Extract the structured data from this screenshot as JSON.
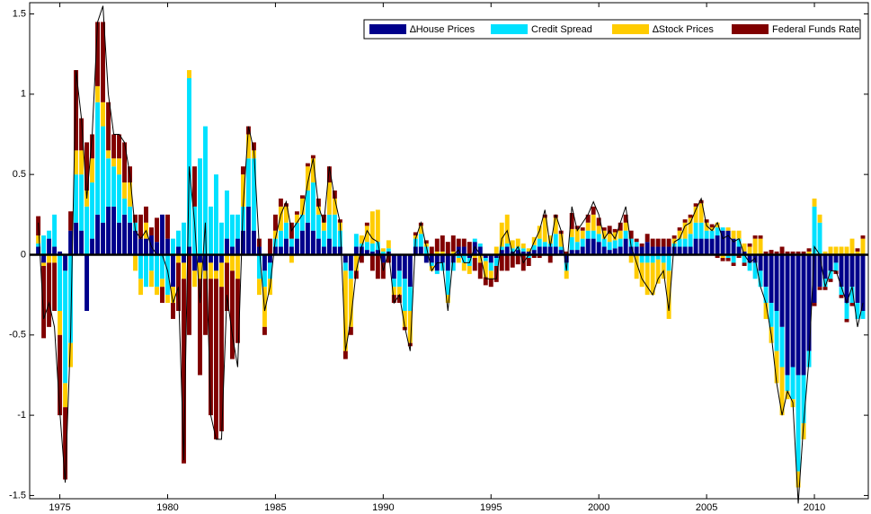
{
  "chart_data": {
    "type": "stacked_bar",
    "legend": "upper right",
    "xlim": [
      1973.6,
      2012.5
    ],
    "ylim": [
      -1.52,
      1.57
    ],
    "xticks": [
      1975,
      1980,
      1985,
      1990,
      1995,
      2000,
      2005,
      2010
    ],
    "yticks": [
      -1.5,
      -1,
      -0.5,
      0,
      0.5,
      1,
      1.5
    ],
    "x": [
      1974,
      1974.25,
      1974.5,
      1974.75,
      1975,
      1975.25,
      1975.5,
      1975.75,
      1976,
      1976.25,
      1976.5,
      1976.75,
      1977,
      1977.25,
      1977.5,
      1977.75,
      1978,
      1978.25,
      1978.5,
      1978.75,
      1979,
      1979.25,
      1979.5,
      1979.75,
      1980,
      1980.25,
      1980.5,
      1980.75,
      1981,
      1981.25,
      1981.5,
      1981.75,
      1982,
      1982.25,
      1982.5,
      1982.75,
      1983,
      1983.25,
      1983.5,
      1983.75,
      1984,
      1984.25,
      1984.5,
      1984.75,
      1985,
      1985.25,
      1985.5,
      1985.75,
      1986,
      1986.25,
      1986.5,
      1986.75,
      1987,
      1987.25,
      1987.5,
      1987.75,
      1988,
      1988.25,
      1988.5,
      1988.75,
      1989,
      1989.25,
      1989.5,
      1989.75,
      1990,
      1990.25,
      1990.5,
      1990.75,
      1991,
      1991.25,
      1991.5,
      1991.75,
      1992,
      1992.25,
      1992.5,
      1992.75,
      1993,
      1993.25,
      1993.5,
      1993.75,
      1994,
      1994.25,
      1994.5,
      1994.75,
      1995,
      1995.25,
      1995.5,
      1995.75,
      1996,
      1996.25,
      1996.5,
      1996.75,
      1997,
      1997.25,
      1997.5,
      1997.75,
      1998,
      1998.25,
      1998.5,
      1998.75,
      1999,
      1999.25,
      1999.5,
      1999.75,
      2000,
      2000.25,
      2000.5,
      2000.75,
      2001,
      2001.25,
      2001.5,
      2001.75,
      2002,
      2002.25,
      2002.5,
      2002.75,
      2003,
      2003.25,
      2003.5,
      2003.75,
      2004,
      2004.25,
      2004.5,
      2004.75,
      2005,
      2005.25,
      2005.5,
      2005.75,
      2006,
      2006.25,
      2006.5,
      2006.75,
      2007,
      2007.25,
      2007.5,
      2007.75,
      2008,
      2008.25,
      2008.5,
      2008.75,
      2009,
      2009.25,
      2009.5,
      2009.75,
      2010,
      2010.25,
      2010.5,
      2010.75,
      2011,
      2011.25,
      2011.5,
      2011.75,
      2012,
      2012.25
    ],
    "series": [
      {
        "name": "∆House Prices",
        "color": "#00008b",
        "values": [
          0.05,
          -0.05,
          0.1,
          0.05,
          0.02,
          -0.1,
          0.15,
          0.2,
          0.15,
          -0.35,
          0.1,
          0.25,
          0.2,
          0.3,
          0.3,
          0.2,
          0.25,
          0.2,
          0.15,
          0.1,
          0.1,
          0.12,
          0.08,
          0.25,
          0.1,
          -0.2,
          0.05,
          -0.05,
          0.05,
          -0.1,
          -0.05,
          -0.1,
          -0.05,
          -0.1,
          -0.05,
          0.1,
          0.05,
          0.1,
          0.15,
          0.3,
          0.15,
          0.05,
          -0.1,
          -0.05,
          0.05,
          0.05,
          0.1,
          0.05,
          0.1,
          0.15,
          0.2,
          0.15,
          0.1,
          0.05,
          0.1,
          0.05,
          0.05,
          -0.05,
          -0.1,
          0.05,
          0.05,
          0.03,
          0.02,
          0.03,
          -0.05,
          0.02,
          -0.15,
          -0.1,
          -0.15,
          -0.2,
          0.05,
          0.05,
          -0.05,
          -0.05,
          -0.1,
          -0.05,
          -0.1,
          -0.05,
          0.05,
          0.05,
          -0.02,
          0.08,
          0.05,
          -0.02,
          -0.05,
          -0.02,
          0.03,
          0.05,
          0.02,
          0.03,
          0.02,
          0.02,
          0.03,
          0.05,
          0.05,
          0.05,
          0.05,
          0.03,
          -0.05,
          0.03,
          0.03,
          0.05,
          0.1,
          0.1,
          0.08,
          0.05,
          0.03,
          0.04,
          0.05,
          0.1,
          0.05,
          0.05,
          0.05,
          0.08,
          0.05,
          0.05,
          0.05,
          0.05,
          0.05,
          0.05,
          0.05,
          0.05,
          0.1,
          0.1,
          0.1,
          0.1,
          0.12,
          0.15,
          0.15,
          0.1,
          0.05,
          0.02,
          -0.05,
          -0.05,
          -0.1,
          -0.2,
          -0.3,
          -0.35,
          -0.45,
          -0.75,
          -0.7,
          -0.75,
          -0.75,
          -0.6,
          -0.3,
          -0.2,
          -0.15,
          -0.1,
          -0.05,
          -0.2,
          -0.3,
          -0.2,
          -0.3,
          -0.35
        ]
      },
      {
        "name": "Credit Spread",
        "color": "#00e1ff",
        "values": [
          0.02,
          0.12,
          0.05,
          0.2,
          -0.35,
          -0.7,
          -0.55,
          0.3,
          0.35,
          0.3,
          0.35,
          0.7,
          0.6,
          0.3,
          0.25,
          0.3,
          0.1,
          0.1,
          0.05,
          -0.15,
          -0.2,
          -0.1,
          -0.2,
          -0.15,
          -0.25,
          0.1,
          0.1,
          0.2,
          1.05,
          0.3,
          0.6,
          0.8,
          0.3,
          0.5,
          0.2,
          0.3,
          0.2,
          0.15,
          0.15,
          0.3,
          0.45,
          -0.15,
          -0.1,
          -0.1,
          0.05,
          0.1,
          0.1,
          0.05,
          0.1,
          0.1,
          0.2,
          0.3,
          0.15,
          0.1,
          0.15,
          0.2,
          0.1,
          -0.05,
          -0.05,
          0.08,
          0.02,
          0.05,
          0.05,
          0.05,
          0.02,
          0.02,
          -0.05,
          -0.1,
          -0.2,
          -0.15,
          0.05,
          0.08,
          0.05,
          -0.02,
          -0.02,
          -0.05,
          -0.15,
          -0.05,
          -0.02,
          -0.05,
          -0.05,
          0.02,
          0.02,
          -0.02,
          -0.05,
          -0.05,
          0.02,
          0.02,
          0.02,
          0.02,
          0.02,
          -0.02,
          0.03,
          0.05,
          0.03,
          0.02,
          0.08,
          0.02,
          -0.05,
          0.08,
          0.05,
          0.05,
          0.05,
          0.05,
          0.05,
          0.05,
          0.05,
          0.05,
          0.05,
          0.05,
          0.05,
          0.03,
          -0.05,
          -0.05,
          -0.05,
          -0.03,
          -0.05,
          -0.1,
          0.02,
          0.05,
          0.05,
          0.08,
          0.1,
          0.1,
          0.05,
          0.05,
          0.05,
          0.02,
          -0.02,
          -0.05,
          0.05,
          -0.05,
          -0.05,
          -0.1,
          -0.1,
          -0.1,
          -0.15,
          -0.25,
          -0.25,
          -0.1,
          -0.2,
          -0.6,
          -0.3,
          -0.1,
          0.3,
          0.2,
          -0.05,
          -0.05,
          -0.05,
          -0.05,
          -0.1,
          -0.1,
          -0.1,
          -0.05
        ]
      },
      {
        "name": "∆Stock Prices",
        "color": "#ffcc00",
        "values": [
          0.05,
          -0.02,
          -0.05,
          -0.05,
          -0.15,
          -0.15,
          -0.15,
          0.15,
          0.15,
          0.1,
          0.15,
          0.1,
          0.15,
          0.05,
          0.05,
          0.1,
          0.1,
          0.15,
          -0.1,
          -0.1,
          0.1,
          -0.1,
          -0.05,
          -0.05,
          -0.05,
          -0.1,
          -0.05,
          -0.1,
          0.05,
          -0.1,
          -0.1,
          -0.05,
          -0.1,
          -0.05,
          -0.15,
          -0.05,
          -0.1,
          -0.15,
          0.2,
          0.15,
          0.05,
          -0.1,
          -0.25,
          -0.1,
          0.05,
          0.15,
          0.1,
          -0.05,
          0.05,
          0.1,
          0.15,
          0.15,
          0.05,
          0.05,
          0.2,
          0.1,
          0.05,
          -0.5,
          -0.3,
          -0.1,
          0.05,
          0.1,
          0.2,
          0.2,
          0.02,
          0.05,
          -0.05,
          -0.05,
          -0.1,
          -0.2,
          0.02,
          0.05,
          0.02,
          -0.03,
          0.02,
          0.02,
          -0.05,
          0.02,
          -0.03,
          -0.05,
          -0.05,
          -0.02,
          -0.05,
          -0.1,
          -0.05,
          0.05,
          0.15,
          0.18,
          0.05,
          0.05,
          0.03,
          0.02,
          0.05,
          0.08,
          0.15,
          0.05,
          0.1,
          0.08,
          -0.05,
          0.05,
          0.08,
          0.05,
          0.05,
          0.1,
          0.05,
          0.05,
          0.05,
          0.05,
          0.05,
          0.05,
          -0.05,
          -0.15,
          -0.15,
          -0.2,
          -0.2,
          -0.15,
          -0.1,
          -0.3,
          0.03,
          0.05,
          0.1,
          0.1,
          0.1,
          0.12,
          0.05,
          0.02,
          0.03,
          -0.02,
          0.02,
          0.05,
          0.05,
          0.05,
          0.05,
          0.1,
          0.1,
          -0.1,
          -0.1,
          -0.2,
          -0.3,
          -0.05,
          -0.05,
          -0.1,
          -0.1,
          0.02,
          0.05,
          0.05,
          0.02,
          0.05,
          0.05,
          0.05,
          0.05,
          0.1,
          0.02,
          0.1
        ]
      },
      {
        "name": "Federal Funds Rate",
        "color": "#800000",
        "values": [
          0.12,
          -0.45,
          -0.4,
          -0.3,
          -0.5,
          -0.45,
          0.12,
          0.5,
          0.2,
          0.3,
          0.15,
          0.4,
          0.5,
          0.3,
          0.15,
          0.15,
          0.25,
          0.1,
          0.05,
          0.15,
          0.1,
          0.05,
          0.15,
          -0.1,
          0.15,
          -0.1,
          -0.3,
          -1.15,
          -0.5,
          0.25,
          -0.6,
          -0.35,
          -0.85,
          -1.0,
          -0.9,
          -0.3,
          -0.55,
          -0.4,
          0.05,
          0.05,
          0.05,
          0.05,
          -0.05,
          0.1,
          0.1,
          0.05,
          0.02,
          0.1,
          0.02,
          0.02,
          0.02,
          0.02,
          0.05,
          0.05,
          0.1,
          0.05,
          0.02,
          -0.05,
          -0.05,
          -0.05,
          -0.05,
          0.02,
          -0.1,
          -0.15,
          -0.1,
          -0.05,
          -0.05,
          -0.05,
          -0.02,
          -0.02,
          0.02,
          0.02,
          0.02,
          0.05,
          0.08,
          0.1,
          0.08,
          0.1,
          0.05,
          0.05,
          0.08,
          -0.08,
          -0.1,
          -0.05,
          -0.05,
          -0.1,
          -0.1,
          -0.1,
          -0.08,
          -0.06,
          -0.1,
          -0.05,
          -0.02,
          -0.02,
          0.02,
          -0.05,
          0.02,
          0.02,
          0.02,
          0.1,
          0.02,
          0.02,
          0.05,
          0.05,
          0.05,
          0.02,
          0.05,
          0.02,
          0.05,
          0.05,
          0.05,
          0.02,
          0.02,
          0.05,
          0.05,
          0.05,
          0.05,
          0.05,
          0.02,
          0.02,
          0.02,
          0.02,
          0.02,
          0.02,
          0.02,
          0.02,
          -0.02,
          -0.02,
          -0.02,
          -0.02,
          -0.02,
          -0.02,
          0.02,
          0.02,
          0.02,
          0.02,
          0.03,
          0.02,
          0.05,
          0.02,
          0.02,
          0.02,
          0.02,
          0.02,
          -0.02,
          -0.02,
          -0.02,
          -0.02,
          -0.02,
          -0.02,
          -0.02,
          -0.02,
          0.02,
          0.02
        ]
      }
    ],
    "line": {
      "color": "#000000",
      "values": [
        0.2,
        -0.4,
        -0.3,
        -0.45,
        -0.98,
        -1.42,
        -0.5,
        1.15,
        0.85,
        0.35,
        0.75,
        1.45,
        1.55,
        1.0,
        0.75,
        0.75,
        0.7,
        0.5,
        0.15,
        0.1,
        0.15,
        0.05,
        0,
        0,
        -0.1,
        -0.3,
        -0.2,
        -1.28,
        0.55,
        0.2,
        -0.3,
        0.2,
        -1.0,
        -1.15,
        -1.15,
        -0.25,
        -0.5,
        -0.7,
        0.3,
        0.8,
        0.65,
        0.05,
        -0.35,
        -0.2,
        0.1,
        0.25,
        0.33,
        0.15,
        0.2,
        0.25,
        0.45,
        0.6,
        0.3,
        0.2,
        0.55,
        0.35,
        0.2,
        -0.6,
        -0.4,
        -0.1,
        0.05,
        0.15,
        0.1,
        0.08,
        -0.1,
        0.02,
        -0.3,
        -0.25,
        -0.45,
        -0.6,
        0.1,
        0.2,
        0.05,
        -0.1,
        -0.05,
        -0.05,
        -0.35,
        0,
        0.03,
        -0.05,
        -0.05,
        0.05,
        0,
        -0.15,
        -0.15,
        -0.15,
        0.1,
        0.15,
        0,
        0.05,
        -0.05,
        0,
        0.08,
        0.15,
        0.28,
        0.05,
        0.25,
        0.15,
        -0.1,
        0.3,
        0.15,
        0.2,
        0.25,
        0.33,
        0.25,
        0.1,
        0.15,
        0.1,
        0.2,
        0.3,
        0.05,
        -0.05,
        -0.15,
        -0.2,
        -0.25,
        -0.15,
        -0.1,
        -0.35,
        0.08,
        0.1,
        0.18,
        0.2,
        0.28,
        0.35,
        0.18,
        0.15,
        0.2,
        0.1,
        0.12,
        0.08,
        0.1,
        0,
        -0.05,
        -0.02,
        -0.2,
        -0.3,
        -0.5,
        -0.8,
        -1.0,
        -0.85,
        -0.92,
        -1.55,
        -1.05,
        -0.65,
        0.05,
        0,
        -0.2,
        -0.1,
        -0.1,
        -0.2,
        -0.3,
        -0.2,
        -0.45,
        -0.3
      ]
    }
  }
}
